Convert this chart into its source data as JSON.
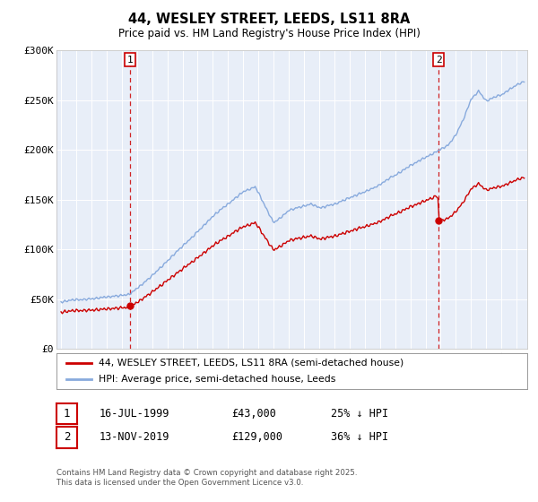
{
  "title": "44, WESLEY STREET, LEEDS, LS11 8RA",
  "subtitle": "Price paid vs. HM Land Registry's House Price Index (HPI)",
  "legend_property": "44, WESLEY STREET, LEEDS, LS11 8RA (semi-detached house)",
  "legend_hpi": "HPI: Average price, semi-detached house, Leeds",
  "transaction1": {
    "label": "1",
    "date": "16-JUL-1999",
    "price": 43000,
    "hpi_rel": "25% ↓ HPI"
  },
  "transaction2": {
    "label": "2",
    "date": "13-NOV-2019",
    "price": 129000,
    "hpi_rel": "36% ↓ HPI"
  },
  "footnote": "Contains HM Land Registry data © Crown copyright and database right 2025.\nThis data is licensed under the Open Government Licence v3.0.",
  "property_color": "#cc0000",
  "hpi_color": "#88aadd",
  "plot_bg": "#e8eef8",
  "ylim": [
    0,
    300000
  ],
  "yticks": [
    0,
    50000,
    100000,
    150000,
    200000,
    250000,
    300000
  ],
  "ytick_labels": [
    "£0",
    "£50K",
    "£100K",
    "£150K",
    "£200K",
    "£250K",
    "£300K"
  ],
  "t1_year": 1999.54,
  "t2_year": 2019.87,
  "t1_price": 43000,
  "t2_price": 129000
}
